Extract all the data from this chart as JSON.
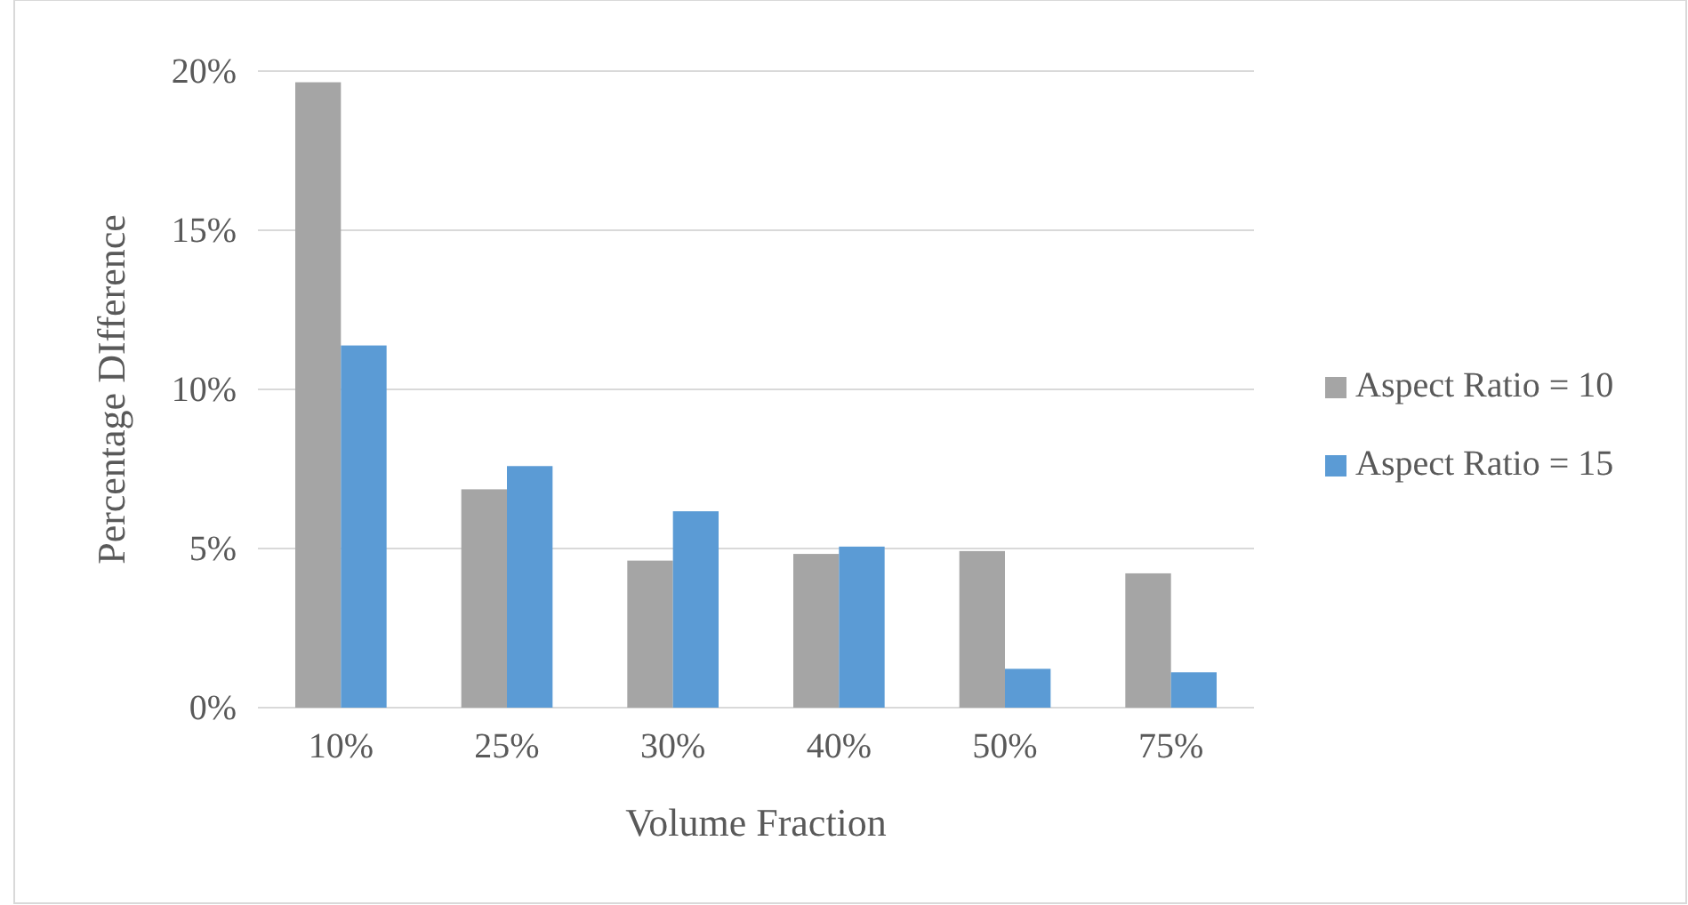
{
  "chart_data": {
    "type": "bar",
    "xlabel": "Volume Fraction",
    "ylabel": "Percentage DIfference",
    "categories": [
      "10%",
      "25%",
      "30%",
      "40%",
      "50%",
      "75%"
    ],
    "series": [
      {
        "name": "Aspect Ratio = 10",
        "color": "#a5a5a5",
        "values": [
          19.65,
          6.86,
          4.62,
          4.83,
          4.92,
          4.22
        ]
      },
      {
        "name": "Aspect Ratio = 15",
        "color": "#5b9bd5",
        "values": [
          11.38,
          7.59,
          6.17,
          5.06,
          1.22,
          1.11
        ]
      }
    ],
    "ylim": [
      0,
      20
    ],
    "yticks": [
      {
        "value": 0,
        "label": "0%"
      },
      {
        "value": 5,
        "label": "5%"
      },
      {
        "value": 10,
        "label": "10%"
      },
      {
        "value": 15,
        "label": "15%"
      },
      {
        "value": 20,
        "label": "20%"
      }
    ],
    "grid": "y",
    "legend": "right"
  }
}
